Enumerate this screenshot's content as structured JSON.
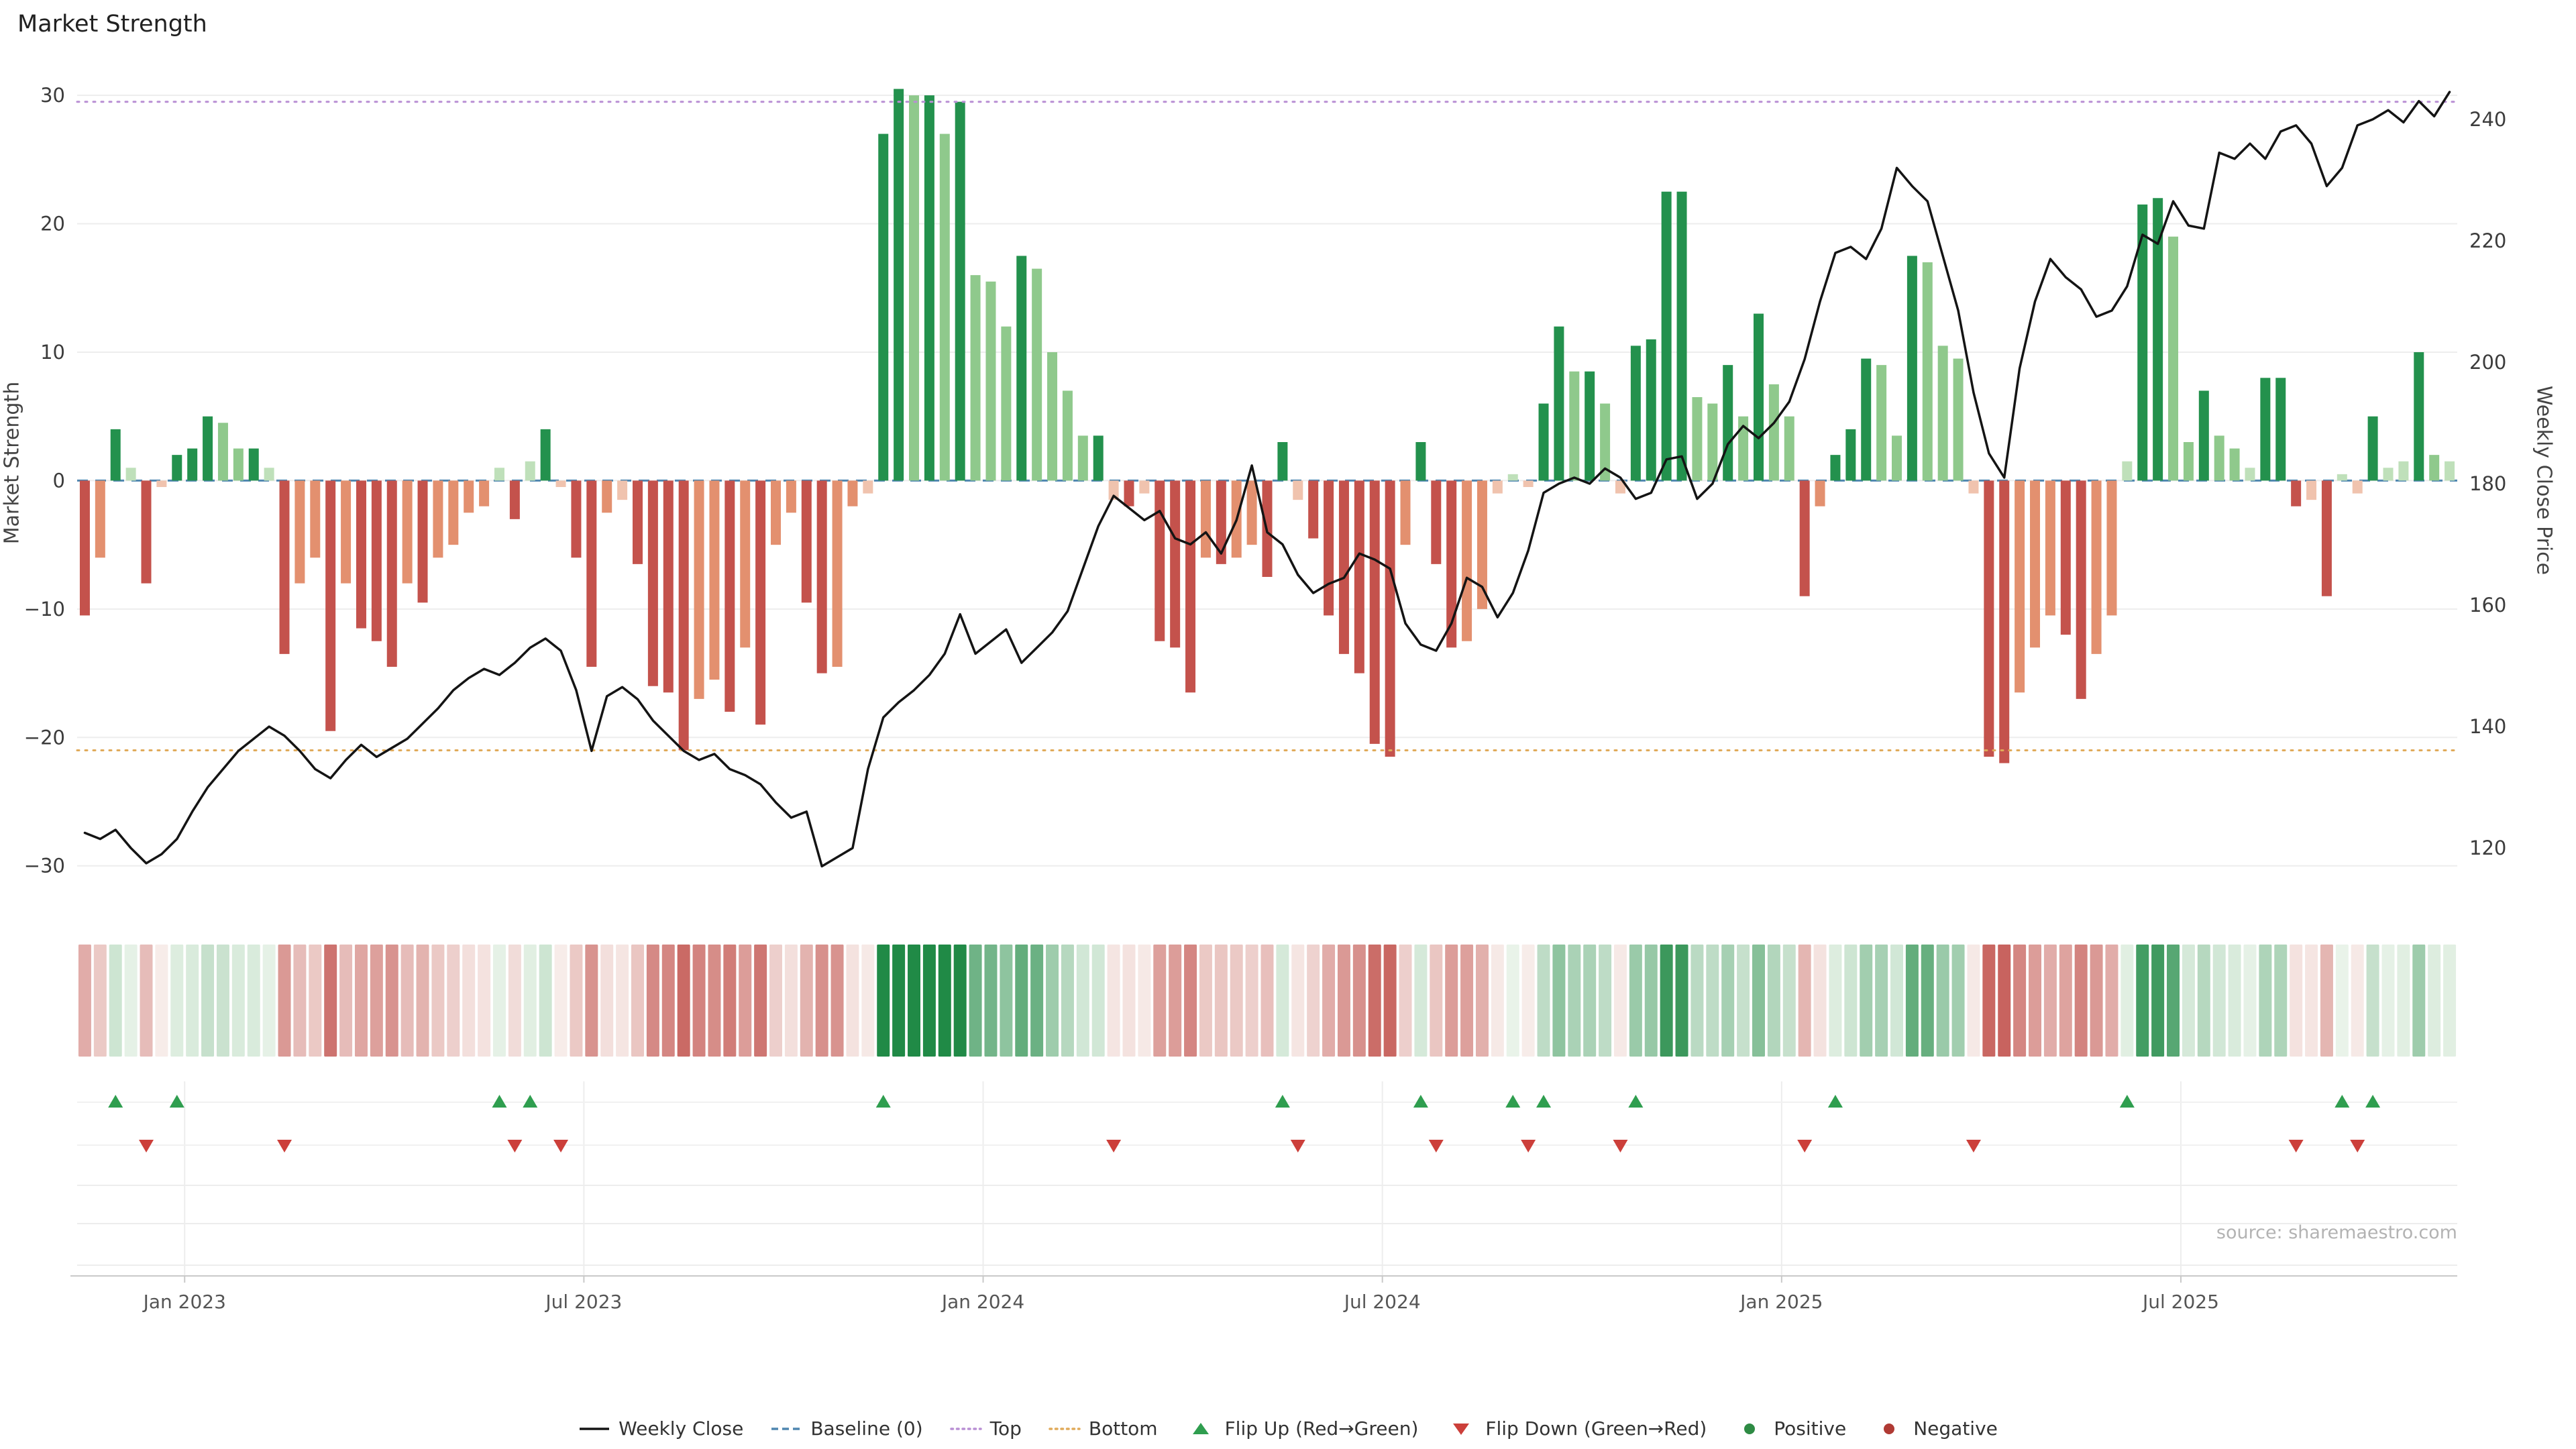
{
  "title": "Market Strength",
  "source": "source: sharemaestro.com",
  "colors": {
    "pos_dark": "#23914d",
    "pos_light": "#8fc98c",
    "pos_faint": "#bfe0ba",
    "neg_dark": "#c4524c",
    "neg_light": "#e3906f",
    "neg_faint": "#f0c3ae",
    "heat_pos": "#208a46",
    "heat_neg": "#bf4a45",
    "heat_base_pos": "#edf5ec",
    "heat_base_neg": "#f8efec",
    "line": "#141414",
    "baseline": "#4f86b0",
    "top": "#b98fd4",
    "bottom": "#e0aa5a",
    "flip_up": "#2f9e4f",
    "flip_down": "#cc3f3a",
    "grid": "#ededed",
    "grid_light": "#f1f1f1",
    "axis_line": "#c9c9c9",
    "axis_text": "#3c3c3c",
    "x_text": "#555555"
  },
  "legend": [
    {
      "label": "Weekly Close",
      "type": "line",
      "color": "#141414"
    },
    {
      "label": "Baseline (0)",
      "type": "dashed",
      "color": "#4f86b0"
    },
    {
      "label": "Top",
      "type": "dotted",
      "color": "#b98fd4"
    },
    {
      "label": "Bottom",
      "type": "dotted",
      "color": "#e0aa5a"
    },
    {
      "label": "Flip Up (Red→Green)",
      "type": "triangle-up",
      "color": "#2f9e4f"
    },
    {
      "label": "Flip Down (Green→Red)",
      "type": "triangle-down",
      "color": "#cc3f3a"
    },
    {
      "label": "Positive",
      "type": "dot",
      "color": "#2e8b44"
    },
    {
      "label": "Negative",
      "type": "dot",
      "color": "#b03a34"
    }
  ],
  "chart_data": {
    "type": "combo",
    "x": {
      "unit": "week",
      "start_date": "2022-11-14",
      "count": 155
    },
    "x_ticks": [
      {
        "index": 7,
        "label": "Jan 2023"
      },
      {
        "index": 33,
        "label": "Jul 2023"
      },
      {
        "index": 59,
        "label": "Jan 2024"
      },
      {
        "index": 85,
        "label": "Jul 2024"
      },
      {
        "index": 111,
        "label": "Jan 2025"
      },
      {
        "index": 137,
        "label": "Jul 2025"
      }
    ],
    "left_axis": {
      "label": "Market Strength",
      "ticks": [
        -30,
        -20,
        -10,
        0,
        10,
        20,
        30
      ],
      "range": [
        -33.2,
        32.2
      ]
    },
    "right_axis": {
      "label": "Weekly Close Price",
      "ticks": [
        120,
        140,
        160,
        180,
        200,
        220,
        240
      ],
      "range": [
        110.3,
        248.6
      ]
    },
    "reference_lines": {
      "baseline": 0,
      "top": 29.5,
      "bottom": -21
    },
    "series": [
      {
        "name": "Market Strength",
        "type": "bar",
        "axis": "left",
        "values": [
          -10.5,
          -6,
          4,
          1,
          -8,
          -0.5,
          2,
          2.5,
          5,
          4.5,
          2.5,
          2.5,
          1,
          -13.5,
          -8,
          -6,
          -19.5,
          -8,
          -11.5,
          -12.5,
          -14.5,
          -8,
          -9.5,
          -6,
          -5,
          -2.5,
          -2,
          1,
          -3,
          1.5,
          4,
          -0.5,
          -6,
          -14.5,
          -2.5,
          -1.5,
          -6.5,
          -16,
          -16.5,
          -21,
          -17,
          -15.5,
          -18,
          -13,
          -19,
          -5,
          -2.5,
          -9.5,
          -15,
          -14.5,
          -2,
          -1,
          27,
          30.5,
          30,
          30,
          27,
          29.5,
          16,
          15.5,
          12,
          17.5,
          16.5,
          10,
          7,
          3.5,
          3.5,
          -1.5,
          -2,
          -1,
          -12.5,
          -13,
          -16.5,
          -6,
          -6.5,
          -6,
          -5,
          -7.5,
          3,
          -1.5,
          -4.5,
          -10.5,
          -13.5,
          -15,
          -20.5,
          -21.5,
          -5,
          3,
          -6.5,
          -13,
          -12.5,
          -10,
          -1,
          0.5,
          -0.5,
          6,
          12,
          8.5,
          8.5,
          6,
          -1,
          10.5,
          11,
          22.5,
          22.5,
          6.5,
          6,
          9,
          5,
          13,
          7.5,
          5,
          -9,
          -2,
          2,
          4,
          9.5,
          9,
          3.5,
          17.5,
          17,
          10.5,
          9.5,
          -1,
          -21.5,
          -22,
          -16.5,
          -13,
          -10.5,
          -12,
          -17,
          -13.5,
          -10.5,
          1.5,
          21.5,
          22,
          19,
          3,
          7,
          3.5,
          2.5,
          1,
          8,
          8,
          -2,
          -1.5,
          -9,
          0.5,
          -1,
          5,
          1,
          1.5,
          10,
          2,
          1.5
        ]
      },
      {
        "name": "Weekly Close",
        "type": "line",
        "axis": "right",
        "values": [
          122.5,
          121.5,
          123,
          120,
          117.5,
          119,
          121.5,
          126,
          130,
          133,
          136,
          138,
          140,
          138.5,
          136,
          133,
          131.5,
          134.5,
          137,
          135,
          136.5,
          138,
          140.5,
          143,
          146,
          148,
          149.5,
          148.5,
          150.5,
          153,
          154.5,
          152.5,
          146,
          136,
          145,
          146.5,
          144.5,
          141,
          138.5,
          136,
          134.5,
          135.5,
          133,
          132,
          130.5,
          127.5,
          125,
          126,
          117,
          118.5,
          120,
          133,
          141.5,
          144,
          146,
          148.5,
          152,
          158.5,
          152,
          154,
          156,
          150.5,
          153,
          155.5,
          159,
          166,
          173,
          178,
          176,
          174,
          175.5,
          171,
          170,
          172,
          168.5,
          174,
          183,
          172,
          170,
          165,
          162,
          163.5,
          164.5,
          168.5,
          167.5,
          166,
          157,
          153.5,
          152.5,
          157,
          164.5,
          163,
          158,
          162,
          169,
          178.5,
          180,
          181,
          180,
          182.5,
          181,
          177.5,
          178.5,
          184,
          184.5,
          177.5,
          180,
          186.5,
          189.5,
          187.5,
          190,
          193.5,
          200.5,
          210,
          218,
          219,
          217,
          222,
          232,
          229,
          226.5,
          217.5,
          208.5,
          195,
          185,
          181,
          199,
          210,
          217,
          214,
          212,
          207.5,
          208.5,
          212.5,
          221,
          219.5,
          226.5,
          222.5,
          222,
          234.5,
          233.5,
          236,
          233.5,
          238,
          239,
          236,
          229,
          232,
          239,
          240,
          241.5,
          239.5,
          243,
          240.5,
          244.5
        ]
      }
    ],
    "flip_up_weeks": [
      2,
      6,
      27,
      29,
      52,
      78,
      87,
      93,
      95,
      101,
      114,
      133,
      147,
      149
    ],
    "flip_down_weeks": [
      4,
      13,
      28,
      31,
      67,
      79,
      88,
      94,
      100,
      112,
      123,
      144,
      148
    ]
  }
}
